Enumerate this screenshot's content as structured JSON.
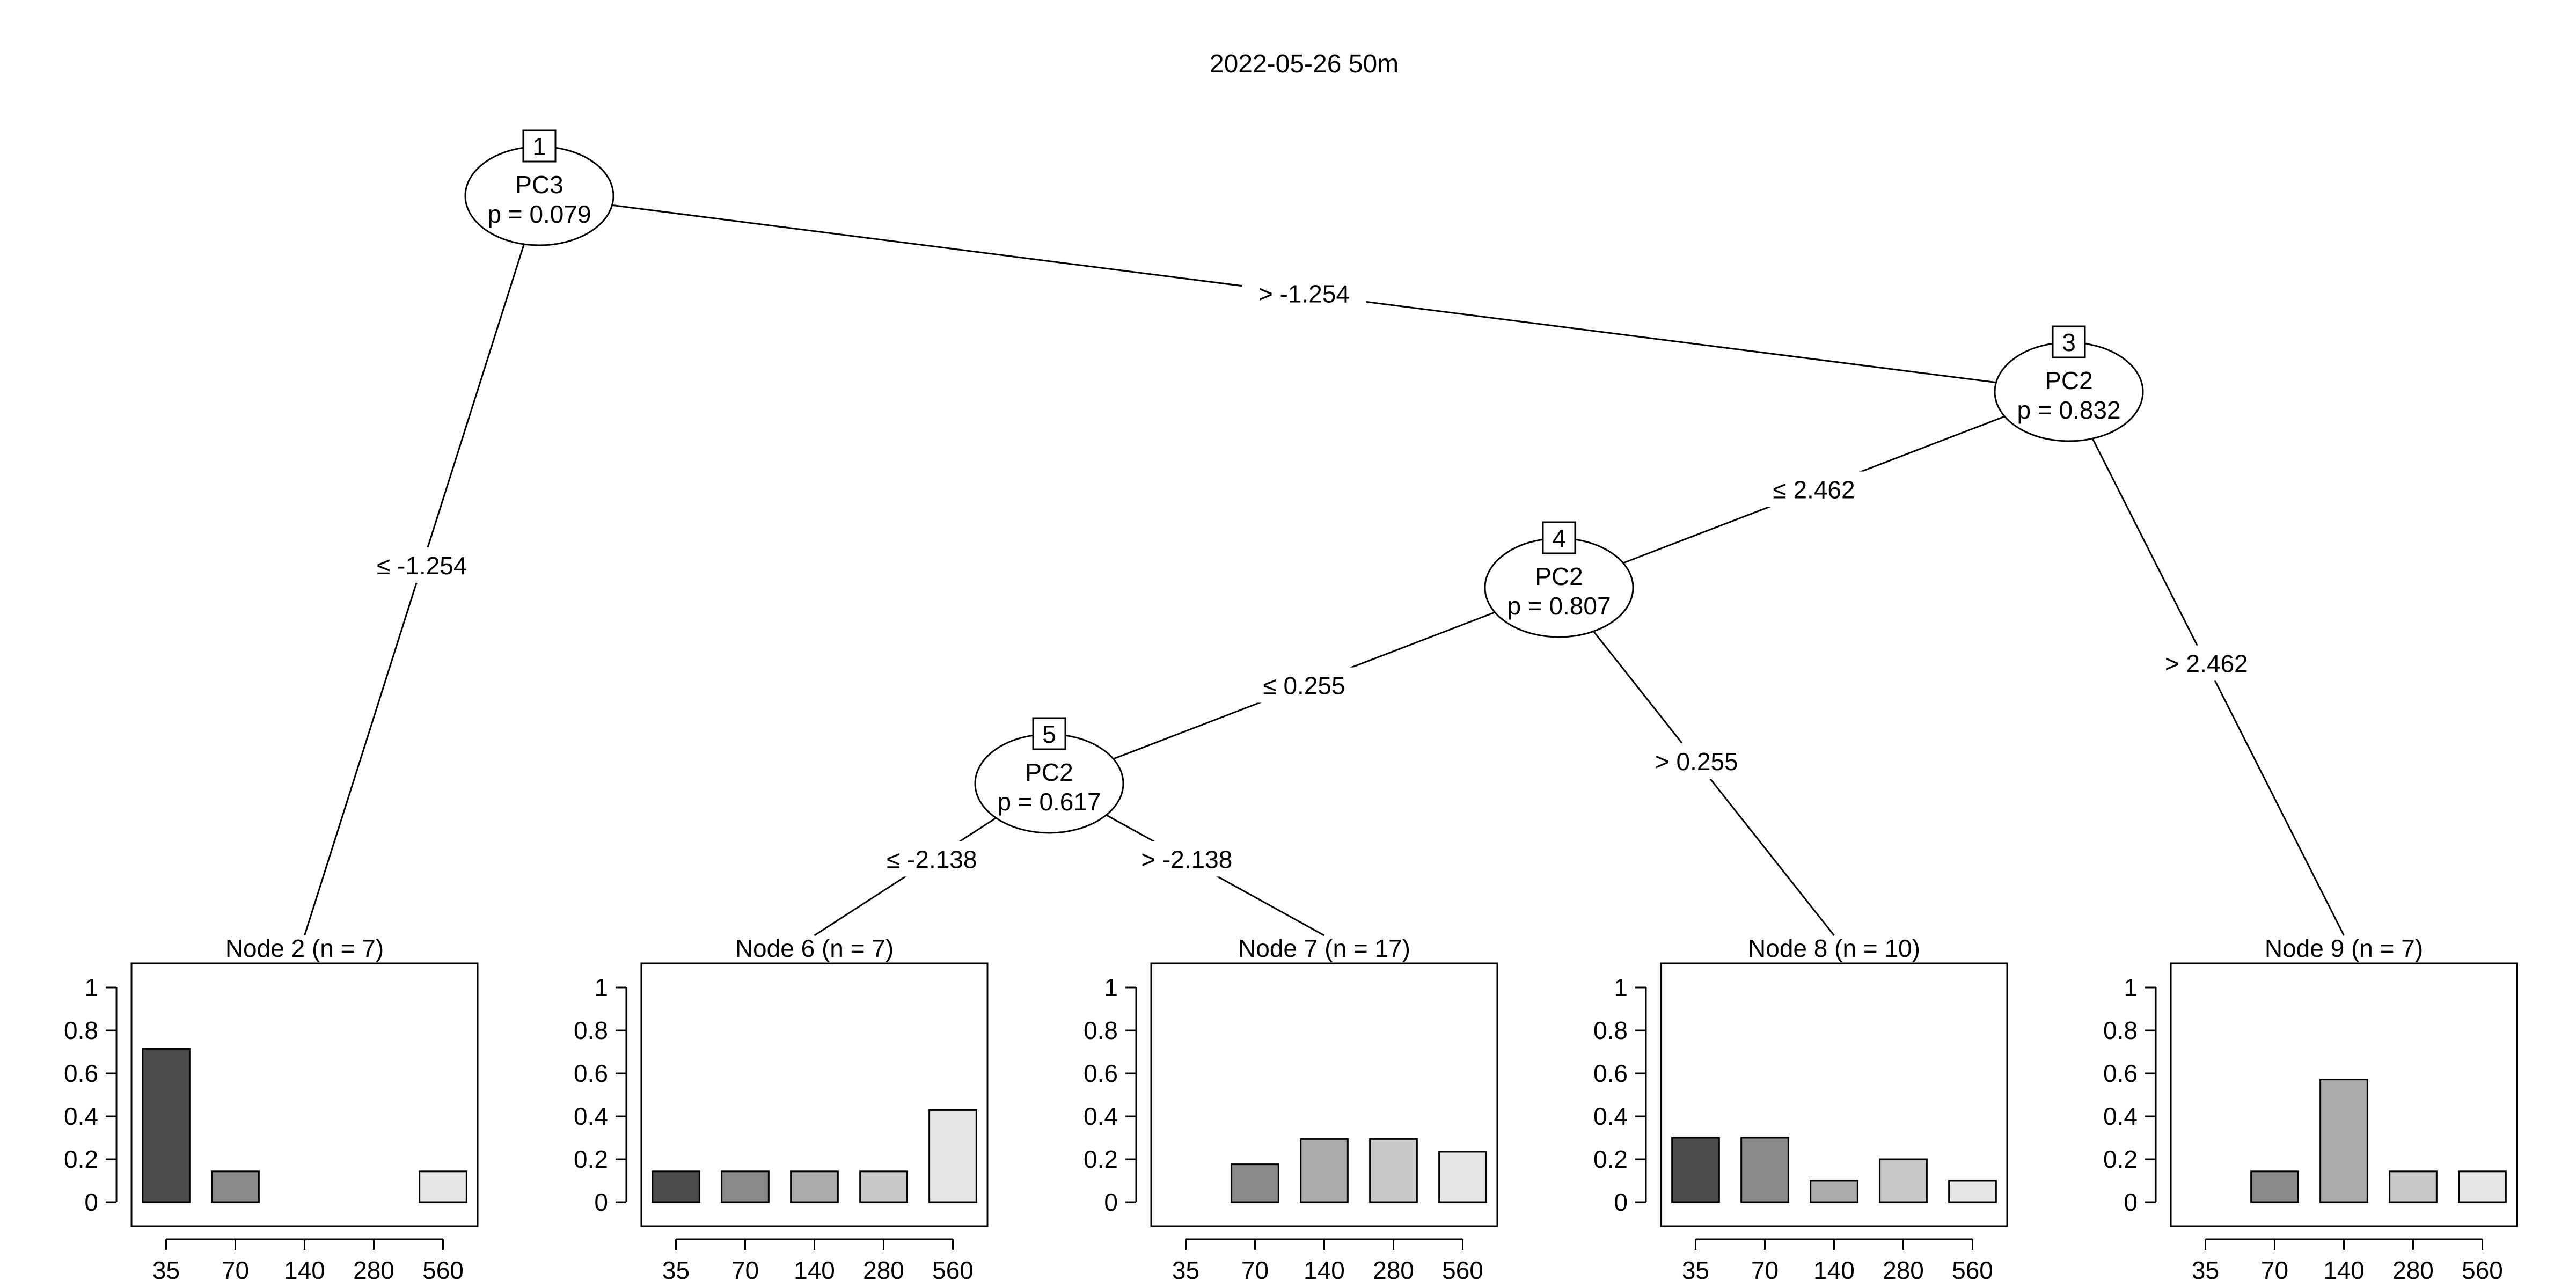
{
  "title": "2022-05-26 50m",
  "inner_nodes": [
    {
      "id": "1",
      "variable": "PC3",
      "p_label": "p = 0.079"
    },
    {
      "id": "3",
      "variable": "PC2",
      "p_label": "p = 0.832"
    },
    {
      "id": "4",
      "variable": "PC2",
      "p_label": "p = 0.807"
    },
    {
      "id": "5",
      "variable": "PC2",
      "p_label": "p = 0.617"
    }
  ],
  "edges": [
    {
      "from": "1",
      "to": "2",
      "label": "≤ -1.254"
    },
    {
      "from": "1",
      "to": "3",
      "label": "> -1.254"
    },
    {
      "from": "3",
      "to": "4",
      "label": "≤ 2.462"
    },
    {
      "from": "3",
      "to": "9",
      "label": "> 2.462"
    },
    {
      "from": "4",
      "to": "5",
      "label": "≤ 0.255"
    },
    {
      "from": "4",
      "to": "8",
      "label": "> 0.255"
    },
    {
      "from": "5",
      "to": "6",
      "label": "≤ -2.138"
    },
    {
      "from": "5",
      "to": "7",
      "label": "> -2.138"
    }
  ],
  "chart_data": {
    "type": "bar",
    "categories": [
      "35",
      "70",
      "140",
      "280",
      "560"
    ],
    "bar_colors": [
      "#4d4d4d",
      "#898989",
      "#ababab",
      "#c8c8c8",
      "#e5e5e5"
    ],
    "ylim": [
      0,
      1
    ],
    "yticks": [
      "0",
      "0.2",
      "0.4",
      "0.6",
      "0.8",
      "1"
    ],
    "terminal_nodes": [
      {
        "id": "2",
        "title": "Node 2 (n = 7)",
        "values": [
          0.714,
          0.143,
          0,
          0,
          0.143
        ]
      },
      {
        "id": "6",
        "title": "Node 6 (n = 7)",
        "values": [
          0.143,
          0.143,
          0.143,
          0.143,
          0.429
        ]
      },
      {
        "id": "7",
        "title": "Node 7 (n = 17)",
        "values": [
          0,
          0.176,
          0.294,
          0.294,
          0.235
        ]
      },
      {
        "id": "8",
        "title": "Node 8 (n = 10)",
        "values": [
          0.3,
          0.3,
          0.1,
          0.2,
          0.1
        ]
      },
      {
        "id": "9",
        "title": "Node 9 (n = 7)",
        "values": [
          0,
          0.143,
          0.571,
          0.143,
          0.143
        ]
      }
    ]
  }
}
